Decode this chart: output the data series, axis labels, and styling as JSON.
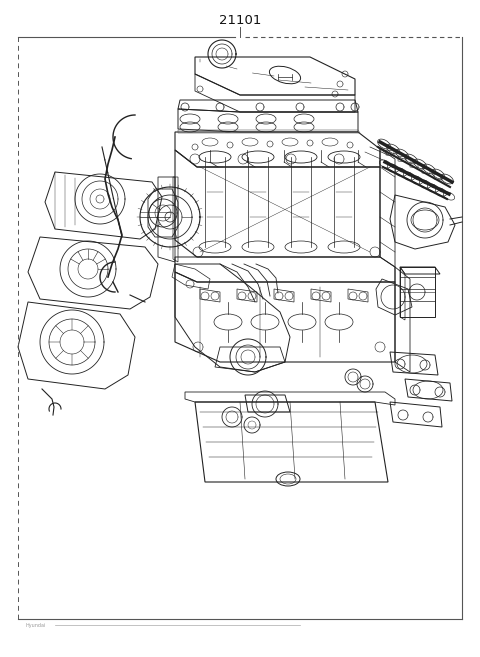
{
  "title": "21101",
  "bg_color": "#ffffff",
  "line_color": "#555555",
  "fig_width": 4.8,
  "fig_height": 6.57,
  "dpi": 100,
  "diagram_color": "#222222",
  "thin": 0.4,
  "medium": 0.7,
  "thick": 1.0
}
